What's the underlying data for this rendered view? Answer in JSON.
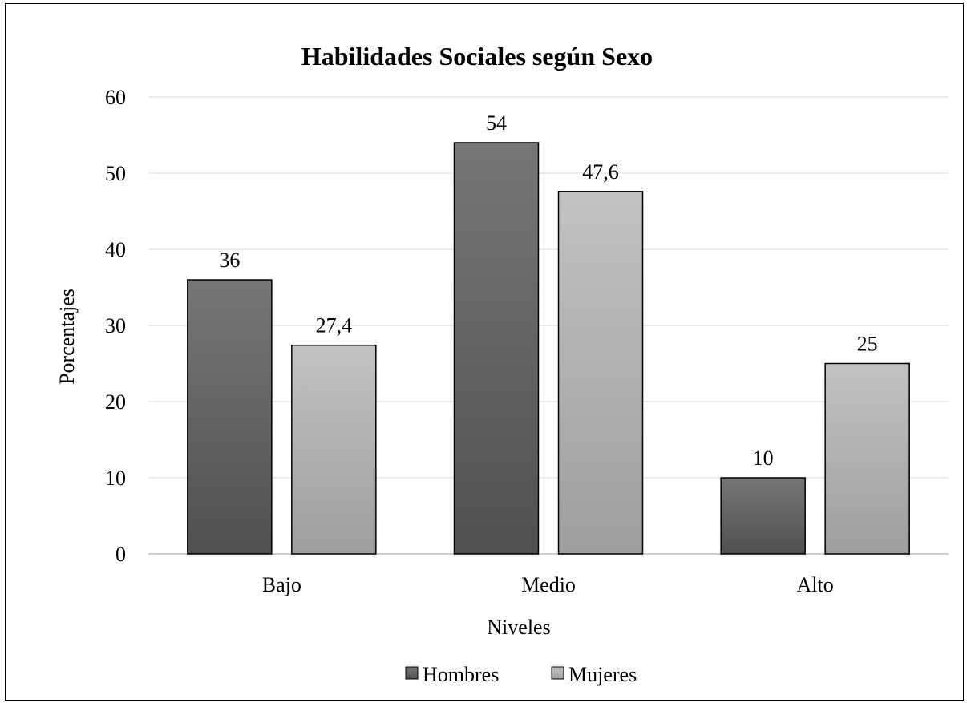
{
  "chart_data": {
    "type": "bar",
    "title": "Habilidades Sociales según Sexo",
    "xlabel": "Niveles",
    "ylabel": "Porcentajes",
    "categories": [
      "Bajo",
      "Medio",
      "Alto"
    ],
    "series": [
      {
        "name": "Hombres",
        "values": [
          36,
          54,
          10
        ],
        "labels": [
          "36",
          "54",
          "10"
        ],
        "color": "#5a5a5a"
      },
      {
        "name": "Mujeres",
        "values": [
          27.4,
          47.6,
          25
        ],
        "labels": [
          "27,4",
          "47,6",
          "25"
        ],
        "color": "#b0b0b0"
      }
    ],
    "ylim": [
      0,
      60
    ],
    "yticks": [
      "0",
      "10",
      "20",
      "30",
      "40",
      "50",
      "60"
    ],
    "grid": true,
    "legend": "bottom"
  }
}
